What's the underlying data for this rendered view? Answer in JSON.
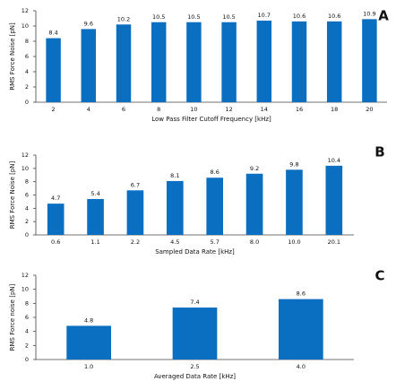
{
  "chart_data": [
    {
      "type": "bar",
      "panel": "A",
      "y_label": "RMS Force Noise [pN]",
      "x_label": "Low Pass Filter Cutoff Frequency [kHz]",
      "categories": [
        "2",
        "4",
        "6",
        "8",
        "10",
        "12",
        "14",
        "16",
        "18",
        "20"
      ],
      "values": [
        8.4,
        9.6,
        10.2,
        10.5,
        10.5,
        10.5,
        10.7,
        10.6,
        10.6,
        10.9
      ],
      "color": "#0b6fc1",
      "ylim": [
        0,
        12
      ],
      "yticks": [
        0,
        2,
        4,
        6,
        8,
        10,
        12
      ],
      "grid": false
    },
    {
      "type": "bar",
      "panel": "B",
      "y_label": "RMS Force Noise [pN]",
      "x_label": "Sampled Data Rate [kHz]",
      "categories": [
        "0.6",
        "1.1",
        "2.2",
        "4.5",
        "5.7",
        "8.0",
        "10.0",
        "20.1"
      ],
      "values": [
        4.7,
        5.4,
        6.7,
        8.1,
        8.6,
        9.2,
        9.8,
        10.4
      ],
      "color": "#0b6fc1",
      "ylim": [
        0,
        12
      ],
      "yticks": [
        0,
        2,
        4,
        6,
        8,
        10,
        12
      ],
      "grid": false
    },
    {
      "type": "bar",
      "panel": "C",
      "y_label": "RMS Force noise [pN]",
      "x_label": "Averaged Data Rate [kHz]",
      "categories": [
        "1.0",
        "2.5",
        "4.0"
      ],
      "values": [
        4.8,
        7.4,
        8.6
      ],
      "color": "#0b6fc1",
      "ylim": [
        0,
        12
      ],
      "yticks": [
        0,
        2,
        4,
        6,
        8,
        10,
        12
      ],
      "grid": false
    }
  ]
}
